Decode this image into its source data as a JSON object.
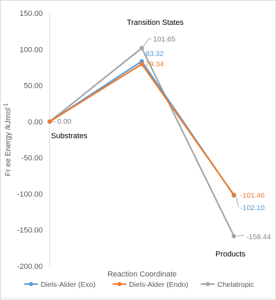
{
  "chart_data": {
    "type": "line",
    "title": "",
    "xlabel": "Reaction Coordinate",
    "ylabel": "Fr ee Energy /kJmol",
    "ylabel_superscript": "-1",
    "ylim": [
      -200,
      150
    ],
    "y_ticks": [
      "150.00",
      "100.00",
      "50.00",
      "0.00",
      "-50.00",
      "-100.00",
      "-150.00",
      "-200.00"
    ],
    "grid": false,
    "legend_position": "bottom",
    "x": [
      "Substrates",
      "Transition States",
      "Products"
    ],
    "stage_labels": [
      "Substrates",
      "Transition States",
      "Products"
    ],
    "series": [
      {
        "name": "Diels-Alder (Exo)",
        "color": "#5B9BD5",
        "values": [
          0.0,
          83.32,
          -102.1
        ],
        "labels": [
          "",
          "83.32",
          "-102.10"
        ]
      },
      {
        "name": "Diels-Alder (Endo)",
        "color": "#ED7D31",
        "values": [
          0.0,
          79.34,
          -101.46
        ],
        "labels": [
          "",
          "79.34",
          "-101.46"
        ]
      },
      {
        "name": "Chelatropic",
        "color": "#A5A5A5",
        "values": [
          0.0,
          101.65,
          -158.44
        ],
        "labels": [
          "0.00",
          "101.65",
          "-158.44"
        ]
      }
    ]
  }
}
